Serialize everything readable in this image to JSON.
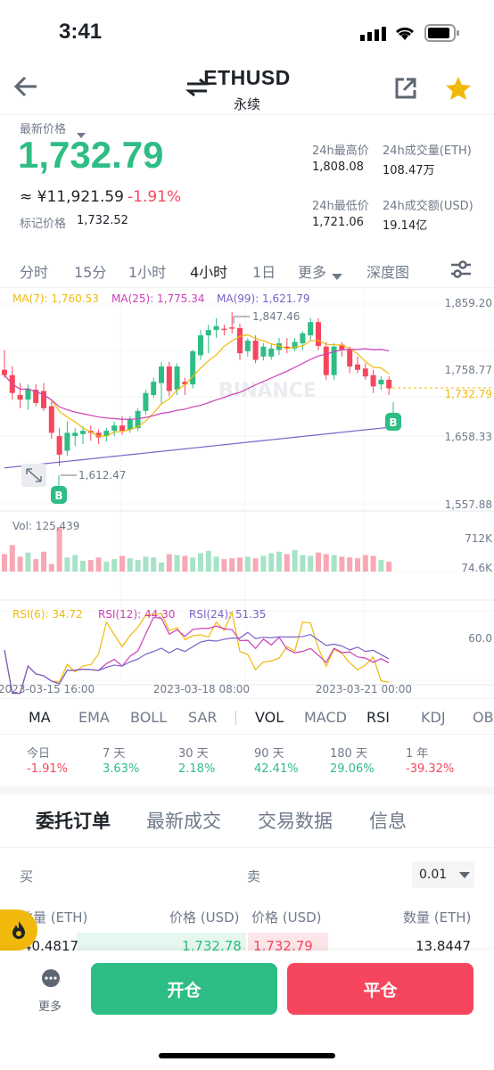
{
  "status": {
    "time": "3:41"
  },
  "header": {
    "title": "ETHUSD",
    "subtitle": "永续"
  },
  "price": {
    "label": "最新价格",
    "last": "1,732.79",
    "cny": "≈ ¥11,921.59",
    "change": "-1.91%",
    "mark_label": "标记价格",
    "mark_value": "1,732.52"
  },
  "stats": {
    "high_label": "24h最高价",
    "high_value": "1,808.08",
    "vol_eth_label": "24h成交量(ETH)",
    "vol_eth_value": "108.47万",
    "low_label": "24h最低价",
    "low_value": "1,721.06",
    "vol_usd_label": "24h成交额(USD)",
    "vol_usd_value": "19.14亿"
  },
  "timeframes": [
    "分时",
    "15分",
    "1小时",
    "4小时",
    "1日",
    "更多",
    "深度图"
  ],
  "active_timeframe": "4小时",
  "chart_data": {
    "type": "candlestick",
    "ma_labels": [
      "MA(7): 1,760.53",
      "MA(25): 1,775.34",
      "MA(99): 1,621.79"
    ],
    "price_axis": [
      "1,859.20",
      "1,758.77",
      "1,732.79",
      "1,658.33",
      "1,557.88"
    ],
    "annotations": {
      "high": "1,847.46",
      "low": "1,612.47",
      "buy_marker": "B"
    },
    "watermark": "BINANCE",
    "ylim": [
      1557.88,
      1859.2
    ],
    "candles": [
      {
        "o": 1760,
        "h": 1790,
        "l": 1748,
        "c": 1752
      },
      {
        "o": 1752,
        "h": 1765,
        "l": 1715,
        "c": 1725
      },
      {
        "o": 1722,
        "h": 1740,
        "l": 1702,
        "c": 1715
      },
      {
        "o": 1715,
        "h": 1738,
        "l": 1700,
        "c": 1732
      },
      {
        "o": 1730,
        "h": 1738,
        "l": 1705,
        "c": 1710
      },
      {
        "o": 1728,
        "h": 1740,
        "l": 1698,
        "c": 1702
      },
      {
        "o": 1705,
        "h": 1712,
        "l": 1656,
        "c": 1665
      },
      {
        "o": 1660,
        "h": 1672,
        "l": 1615,
        "c": 1632
      },
      {
        "o": 1638,
        "h": 1682,
        "l": 1630,
        "c": 1665
      },
      {
        "o": 1660,
        "h": 1672,
        "l": 1645,
        "c": 1665
      },
      {
        "o": 1663,
        "h": 1675,
        "l": 1648,
        "c": 1668
      },
      {
        "o": 1668,
        "h": 1676,
        "l": 1653,
        "c": 1665
      },
      {
        "o": 1665,
        "h": 1670,
        "l": 1648,
        "c": 1658
      },
      {
        "o": 1660,
        "h": 1672,
        "l": 1652,
        "c": 1668
      },
      {
        "o": 1668,
        "h": 1682,
        "l": 1660,
        "c": 1676
      },
      {
        "o": 1676,
        "h": 1690,
        "l": 1662,
        "c": 1668
      },
      {
        "o": 1670,
        "h": 1690,
        "l": 1665,
        "c": 1686
      },
      {
        "o": 1672,
        "h": 1702,
        "l": 1668,
        "c": 1698
      },
      {
        "o": 1698,
        "h": 1730,
        "l": 1692,
        "c": 1725
      },
      {
        "o": 1722,
        "h": 1748,
        "l": 1718,
        "c": 1742
      },
      {
        "o": 1740,
        "h": 1772,
        "l": 1708,
        "c": 1765
      },
      {
        "o": 1765,
        "h": 1772,
        "l": 1720,
        "c": 1728
      },
      {
        "o": 1730,
        "h": 1770,
        "l": 1722,
        "c": 1765
      },
      {
        "o": 1742,
        "h": 1748,
        "l": 1722,
        "c": 1738
      },
      {
        "o": 1738,
        "h": 1790,
        "l": 1732,
        "c": 1788
      },
      {
        "o": 1782,
        "h": 1820,
        "l": 1775,
        "c": 1812
      },
      {
        "o": 1812,
        "h": 1828,
        "l": 1785,
        "c": 1820
      },
      {
        "o": 1820,
        "h": 1838,
        "l": 1808,
        "c": 1826
      },
      {
        "o": 1822,
        "h": 1828,
        "l": 1812,
        "c": 1820
      },
      {
        "o": 1824,
        "h": 1847,
        "l": 1815,
        "c": 1822
      },
      {
        "o": 1823,
        "h": 1830,
        "l": 1775,
        "c": 1785
      },
      {
        "o": 1788,
        "h": 1808,
        "l": 1780,
        "c": 1804
      },
      {
        "o": 1804,
        "h": 1812,
        "l": 1770,
        "c": 1775
      },
      {
        "o": 1780,
        "h": 1800,
        "l": 1774,
        "c": 1795
      },
      {
        "o": 1780,
        "h": 1798,
        "l": 1775,
        "c": 1792
      },
      {
        "o": 1790,
        "h": 1808,
        "l": 1782,
        "c": 1800
      },
      {
        "o": 1795,
        "h": 1808,
        "l": 1785,
        "c": 1792
      },
      {
        "o": 1792,
        "h": 1808,
        "l": 1788,
        "c": 1802
      },
      {
        "o": 1800,
        "h": 1818,
        "l": 1790,
        "c": 1815
      },
      {
        "o": 1812,
        "h": 1838,
        "l": 1805,
        "c": 1832
      },
      {
        "o": 1832,
        "h": 1838,
        "l": 1790,
        "c": 1796
      },
      {
        "o": 1795,
        "h": 1802,
        "l": 1745,
        "c": 1752
      },
      {
        "o": 1752,
        "h": 1800,
        "l": 1745,
        "c": 1795
      },
      {
        "o": 1798,
        "h": 1802,
        "l": 1780,
        "c": 1790
      },
      {
        "o": 1790,
        "h": 1795,
        "l": 1755,
        "c": 1765
      },
      {
        "o": 1768,
        "h": 1780,
        "l": 1755,
        "c": 1760
      },
      {
        "o": 1762,
        "h": 1770,
        "l": 1745,
        "c": 1750
      },
      {
        "o": 1752,
        "h": 1760,
        "l": 1725,
        "c": 1735
      },
      {
        "o": 1738,
        "h": 1750,
        "l": 1730,
        "c": 1745
      },
      {
        "o": 1745,
        "h": 1750,
        "l": 1722,
        "c": 1732
      }
    ],
    "volume": {
      "label": "Vol: 125,439",
      "axis": [
        "712K",
        "74.6K"
      ],
      "values": [
        210,
        320,
        180,
        230,
        150,
        240,
        90,
        540,
        170,
        200,
        130,
        140,
        170,
        120,
        150,
        190,
        160,
        140,
        180,
        170,
        110,
        210,
        200,
        190,
        170,
        220,
        250,
        180,
        150,
        160,
        170,
        180,
        160,
        190,
        220,
        240,
        210,
        260,
        200,
        190,
        230,
        210,
        200,
        180,
        170,
        160,
        200,
        190,
        140,
        120
      ]
    },
    "rsi": {
      "labels": [
        "RSI(6): 34.72",
        "RSI(12): 44.30",
        "RSI(24): 51.35"
      ],
      "axis": "60.0"
    },
    "x_labels": [
      "2023-03-15 16:00",
      "2023-03-18 08:00",
      "2023-03-21 00:00"
    ]
  },
  "indicators": [
    "MA",
    "EMA",
    "BOLL",
    "SAR",
    "VOL",
    "MACD",
    "RSI",
    "KDJ",
    "OB"
  ],
  "performance": [
    {
      "label": "今日",
      "value": "-1.91%"
    },
    {
      "label": "7 天",
      "value": "3.63%"
    },
    {
      "label": "30 天",
      "value": "2.18%"
    },
    {
      "label": "90 天",
      "value": "42.41%"
    },
    {
      "label": "180 天",
      "value": "29.06%"
    },
    {
      "label": "1 年",
      "value": "-39.32%"
    }
  ],
  "tabs": [
    "委托订单",
    "最新成交",
    "交易数据",
    "信息"
  ],
  "orderbook": {
    "buy_label": "买",
    "sell_label": "卖",
    "precision": "0.01",
    "qty_header": "数量 (ETH)",
    "price_header": "价格 (USD)",
    "price_header_2": "价格 (USD)",
    "qty_header_2": "数量 (ETH)",
    "row": {
      "bid_qty": "40.4817",
      "bid_price": "1,732.78",
      "ask_price": "1,732.79",
      "ask_qty": "13.8447"
    }
  },
  "bottom": {
    "more": "更多",
    "open": "开仓",
    "close": "平仓"
  },
  "colors": {
    "up": "#2ebd85",
    "down": "#f6465d",
    "accent": "#f0b90b",
    "ma7": "#f0b90b",
    "ma25": "#cb3fb7",
    "ma99": "#7b61c7"
  }
}
